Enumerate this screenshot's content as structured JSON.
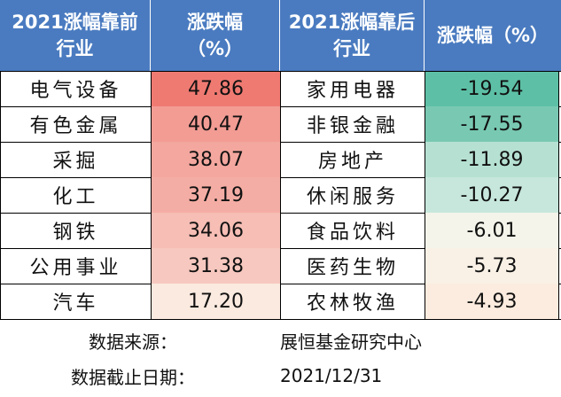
{
  "headers": {
    "top_name": "2021涨幅靠前\n行业",
    "top_pct": "涨跌幅\n（%）",
    "bottom_name": "2021涨幅靠后\n行业",
    "bottom_pct": "涨跌幅（%）"
  },
  "rows": [
    {
      "top_name": "电气设备",
      "top_pct": "47.86",
      "top_color": "#ef7a72",
      "bottom_name": "家用电器",
      "bottom_pct": "-19.54",
      "bottom_color": "#5dc0a6"
    },
    {
      "top_name": "有色金属",
      "top_pct": "40.47",
      "top_color": "#f29c94",
      "bottom_name": "非银金融",
      "bottom_pct": "-17.55",
      "bottom_color": "#79c9b2"
    },
    {
      "top_name": "采掘",
      "top_pct": "38.07",
      "top_color": "#f3a79e",
      "bottom_name": "房地产",
      "bottom_pct": "-11.89",
      "bottom_color": "#b6e1d2"
    },
    {
      "top_name": "化工",
      "top_pct": "37.19",
      "top_color": "#f4ada4",
      "bottom_name": "休闲服务",
      "bottom_pct": "-10.27",
      "bottom_color": "#c7e7dc"
    },
    {
      "top_name": "钢铁",
      "top_pct": "34.06",
      "top_color": "#f6beb5",
      "bottom_name": "食品饮料",
      "bottom_pct": "-6.01",
      "bottom_color": "#f4f4ea"
    },
    {
      "top_name": "公用事业",
      "top_pct": "31.38",
      "top_color": "#f7c8bf",
      "bottom_name": "医药生物",
      "bottom_pct": "-5.73",
      "bottom_color": "#f9f1e6"
    },
    {
      "top_name": "汽车",
      "top_pct": "17.20",
      "top_color": "#fbeadf",
      "bottom_name": "农林牧渔",
      "bottom_pct": "-4.93",
      "bottom_color": "#fcecdf"
    }
  ],
  "footer": {
    "source_label": "数据来源：",
    "source_value": "展恒基金研究中心",
    "date_label": "数据截止日期：",
    "date_value": "2021/12/31"
  },
  "colors": {
    "header_bg": "#4a7bc0",
    "header_text": "#ffffff"
  }
}
